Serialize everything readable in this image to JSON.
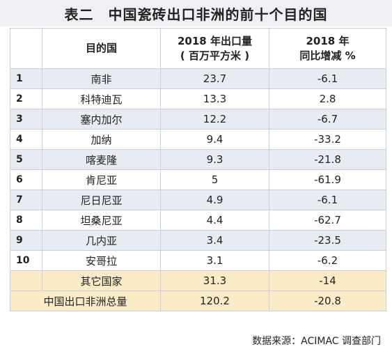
{
  "title": "表二　中国瓷砖出口非洲的前十个目的国",
  "header": {
    "col_country": "目的国",
    "col_volume_line1": "2018 年出口量",
    "col_volume_line2": "( 百万平方米 )",
    "col_growth_line1": "2018 年",
    "col_growth_line2": "同比增减 %"
  },
  "rows": [
    {
      "rank": "1",
      "country": "南非",
      "volume": "23.7",
      "growth": "-6.1"
    },
    {
      "rank": "2",
      "country": "科特迪瓦",
      "volume": "13.3",
      "growth": "2.8"
    },
    {
      "rank": "3",
      "country": "塞内加尔",
      "volume": "12.2",
      "growth": "-6.7"
    },
    {
      "rank": "4",
      "country": "加纳",
      "volume": "9.4",
      "growth": "-33.2"
    },
    {
      "rank": "5",
      "country": "喀麦隆",
      "volume": "9.3",
      "growth": "-21.8"
    },
    {
      "rank": "6",
      "country": "肯尼亚",
      "volume": "5",
      "growth": "-61.9"
    },
    {
      "rank": "7",
      "country": "尼日尼亚",
      "volume": "4.9",
      "growth": "-6.1"
    },
    {
      "rank": "8",
      "country": "坦桑尼亚",
      "volume": "4.4",
      "growth": "-62.7"
    },
    {
      "rank": "9",
      "country": "几内亚",
      "volume": "3.4",
      "growth": "-23.5"
    },
    {
      "rank": "10",
      "country": "安哥拉",
      "volume": "3.1",
      "growth": "-6.2"
    }
  ],
  "summary": [
    {
      "label": "其它国家",
      "volume": "31.3",
      "growth": "-14"
    },
    {
      "label": "中国出口非洲总量",
      "volume": "120.2",
      "growth": "-20.8"
    }
  ],
  "source": "数据来源：ACIMAC 调查部门",
  "colors": {
    "title_bg": "#eef0f4",
    "row_stripe": "#e7ebf2",
    "summary_bg": "#fbecc8",
    "border": "#c9ced8"
  }
}
